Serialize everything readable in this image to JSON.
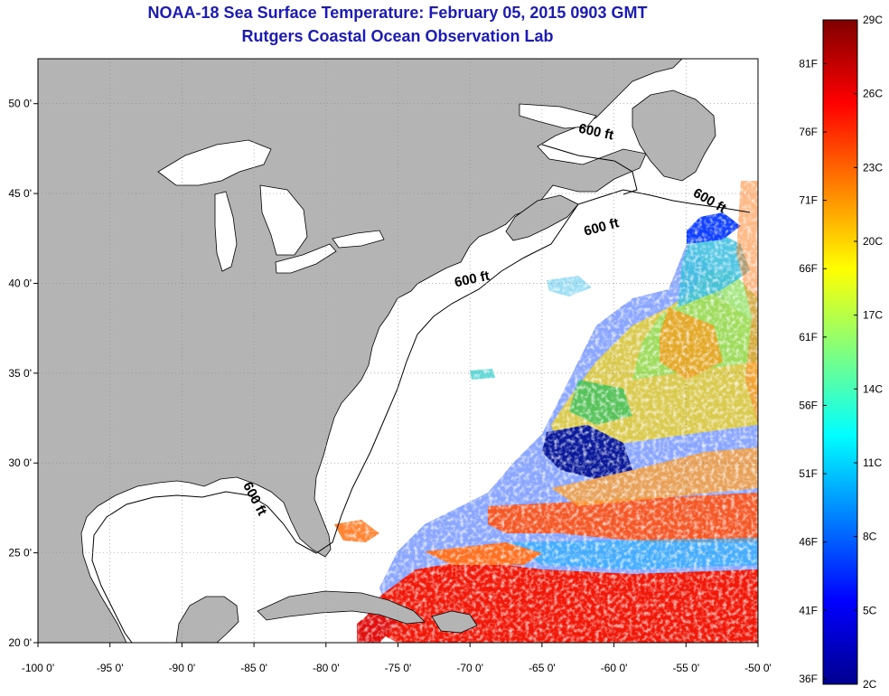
{
  "header": {
    "title": "NOAA-18 Sea Surface Temperature:  February 05, 2015 0903 GMT",
    "subtitle": "Rutgers Coastal Ocean Observation Lab"
  },
  "map": {
    "lon_range": [
      -100,
      -50
    ],
    "lat_range": [
      20,
      52.5
    ],
    "lon_ticks": [
      "-100 0'",
      "-95 0'",
      "-90 0'",
      "-85 0'",
      "-80 0'",
      "-75 0'",
      "-70 0'",
      "-65 0'",
      "-60 0'",
      "-55 0'",
      "-50 0'"
    ],
    "lat_ticks": [
      {
        "lat": 20,
        "label": "20 0'"
      },
      {
        "lat": 25,
        "label": "25 0'"
      },
      {
        "lat": 30,
        "label": "30 0'"
      },
      {
        "lat": 35,
        "label": "35 0'"
      },
      {
        "lat": 40,
        "label": "40 0'"
      },
      {
        "lat": 45,
        "label": "45 0'"
      },
      {
        "lat": 50,
        "label": "50 0'"
      }
    ],
    "contour_labels": [
      {
        "text": "600 ft",
        "lon": -61.3,
        "lat": 48.2,
        "angle": 12
      },
      {
        "text": "600 ft",
        "lon": -53.5,
        "lat": 44.4,
        "angle": 30
      },
      {
        "text": "600 ft",
        "lon": -60.8,
        "lat": 42.9,
        "angle": -15
      },
      {
        "text": "600 ft",
        "lon": -69.8,
        "lat": 40.0,
        "angle": -12
      },
      {
        "text": "600 ft",
        "lon": -85.2,
        "lat": 27.9,
        "angle": 62
      }
    ],
    "colors": {
      "land": "#b4b4b4",
      "water": "#ffffff",
      "coast": "#000000"
    }
  },
  "colorbar": {
    "celsius": [
      "29C",
      "26C",
      "23C",
      "20C",
      "17C",
      "14C",
      "11C",
      "8C",
      "5C",
      "2C"
    ],
    "fahrenheit": [
      "81F",
      "76F",
      "71F",
      "66F",
      "61F",
      "56F",
      "51F",
      "46F",
      "41F",
      "36F"
    ],
    "c_range": [
      2,
      29
    ]
  }
}
